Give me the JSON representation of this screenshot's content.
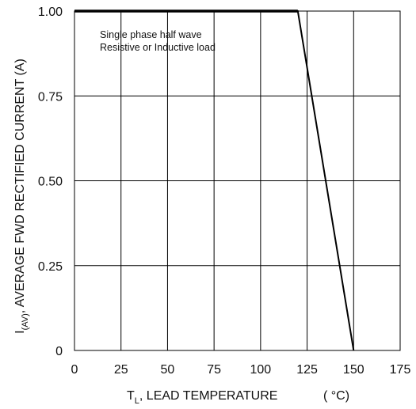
{
  "chart_data": {
    "type": "line",
    "xlabel": {
      "main": "T",
      "sub": "L",
      "rest": ", LEAD TEMPERATURE",
      "unit": "( °C)"
    },
    "ylabel": {
      "main": "I",
      "sub": "(AV)",
      "rest": ", AVERAGE FWD RECTIFIED CURRENT (A)"
    },
    "xlim": [
      0,
      175
    ],
    "ylim": [
      0,
      1.0
    ],
    "x_ticks": [
      0,
      25,
      50,
      75,
      100,
      125,
      150,
      175
    ],
    "x_tick_labels": [
      "0",
      "25",
      "50",
      "75",
      "100",
      "125",
      "150",
      "175"
    ],
    "y_ticks": [
      0,
      0.25,
      0.5,
      0.75,
      1.0
    ],
    "y_tick_labels": [
      "0",
      "0.25",
      "0.50",
      "0.75",
      "1.00"
    ],
    "grid": true,
    "annotations": [
      "Single phase half wave",
      "Resistive or Inductive load"
    ],
    "series": [
      {
        "x": [
          0,
          120,
          150
        ],
        "y": [
          1.0,
          1.0,
          0.0
        ],
        "color": "#000000"
      }
    ]
  }
}
